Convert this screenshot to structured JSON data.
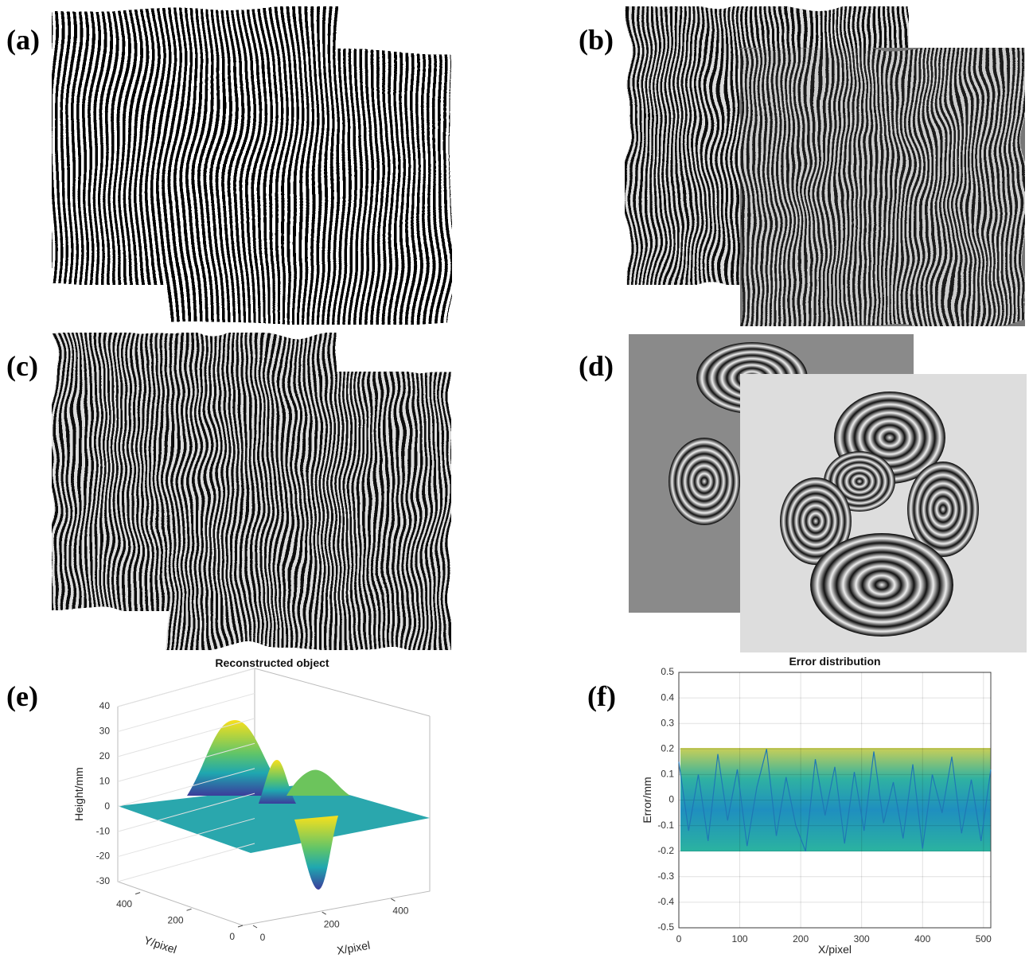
{
  "panels": {
    "labels": [
      "(a)",
      "(b)",
      "(c)",
      "(d)",
      "(e)",
      "(f)"
    ]
  },
  "chart_data": [
    {
      "type": "surface3d",
      "title": "Reconstructed object",
      "zlabel": "Height/mm",
      "xlabel": "X/pixel",
      "ylabel": "Y/pixel",
      "zlim": [
        -30,
        40
      ],
      "zticks": [
        -30,
        -20,
        -10,
        0,
        10,
        20,
        30,
        40
      ],
      "xlim": [
        0,
        512
      ],
      "xticks": [
        0,
        200,
        400
      ],
      "ylim": [
        0,
        512
      ],
      "yticks": [
        0,
        200,
        400
      ]
    },
    {
      "type": "line",
      "title": "Error distribution",
      "xlabel": "X/pixel",
      "ylabel": "Error/mm",
      "xlim": [
        0,
        512
      ],
      "ylim": [
        -0.5,
        0.5
      ],
      "xticks": [
        0,
        100,
        200,
        300,
        400,
        500
      ],
      "yticks": [
        -0.5,
        -0.4,
        -0.3,
        -0.2,
        -0.1,
        0,
        0.1,
        0.2,
        0.3,
        0.4,
        0.5
      ],
      "grid": true,
      "series": [
        {
          "color": "#1f77b4",
          "x": [
            0,
            16,
            32,
            48,
            64,
            80,
            96,
            112,
            128,
            144,
            160,
            176,
            192,
            208,
            224,
            240,
            256,
            272,
            288,
            304,
            320,
            336,
            352,
            368,
            384,
            400,
            416,
            432,
            448,
            464,
            480,
            496,
            512
          ],
          "values": [
            0.15,
            -0.12,
            0.1,
            -0.16,
            0.18,
            -0.08,
            0.12,
            -0.18,
            0.05,
            0.2,
            -0.14,
            0.09,
            -0.1,
            -0.2,
            0.16,
            -0.06,
            0.13,
            -0.17,
            0.11,
            -0.12,
            0.19,
            -0.09,
            0.07,
            -0.15,
            0.14,
            -0.19,
            0.1,
            -0.05,
            0.17,
            -0.13,
            0.08,
            -0.16,
            0.12
          ]
        }
      ]
    }
  ]
}
